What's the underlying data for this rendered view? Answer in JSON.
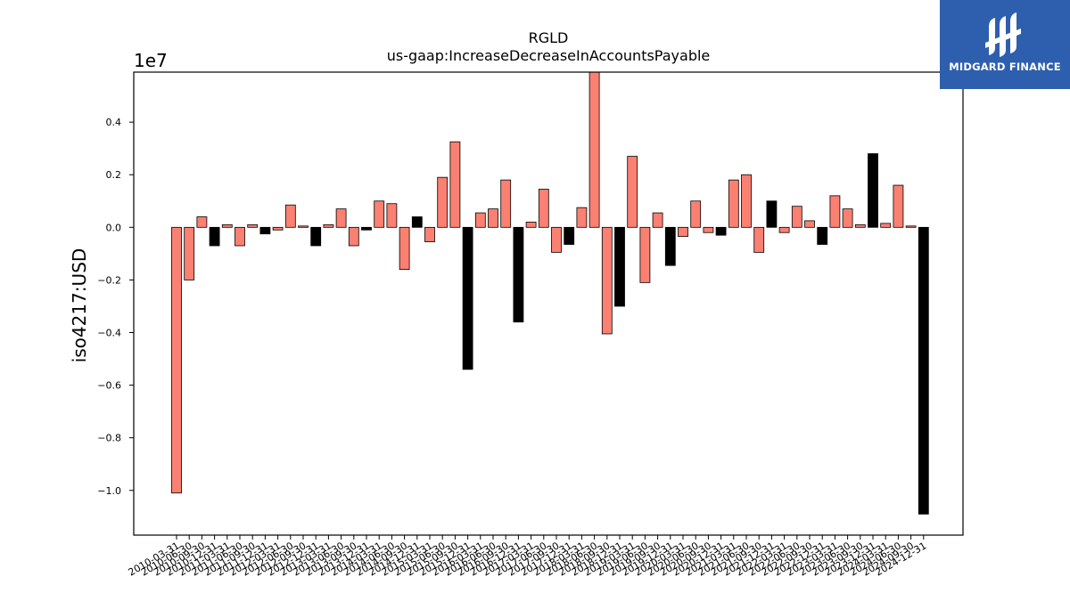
{
  "chart_data": {
    "type": "bar",
    "title": "RGLD",
    "subtitle": "us-gaap:IncreaseDecreaseInAccountsPayable",
    "ylabel": "iso4217:USD",
    "y_offset_label": "1e7",
    "y_scale": 10000000,
    "ylim": [
      -1.17,
      0.59
    ],
    "yticks": [
      0.4,
      0.2,
      0.0,
      -0.2,
      -0.4,
      -0.6,
      -0.8,
      -1.0
    ],
    "ytick_labels": [
      "0.4",
      "0.2",
      "0.0",
      "−0.2",
      "−0.4",
      "−0.6",
      "−0.8",
      "−1.0"
    ],
    "x_tick_labels_visible": [
      "2010-03-31",
      "2010-06-30",
      "2010-09-30",
      "2010-12-31",
      "2011-03-31",
      "2011-06-30",
      "2011-09-30",
      "2011-12-31",
      "2012-03-31",
      "2012-06-30",
      "2012-09-30",
      "2012-12-31",
      "2013-03-31",
      "2013-06-30",
      "2013-09-30",
      "2013-12-31",
      "2014-03-31",
      "2014-06-30",
      "2014-09-30",
      "2014-12-31",
      "2015-03-31",
      "2015-06-30",
      "2015-09-30",
      "2015-12-31",
      "2016-03-31",
      "2016-06-30",
      "2016-09-30",
      "2016-12-31",
      "2017-03-31",
      "2017-06-30",
      "2017-09-30",
      "2017-12-31",
      "2018-03-31",
      "2018-06-30",
      "2018-09-30",
      "2018-12-31",
      "2019-03-31",
      "2019-06-30",
      "2019-09-30",
      "2019-12-31",
      "2020-03-31",
      "2020-06-30",
      "2020-09-30",
      "2020-12-31",
      "2021-03-31",
      "2021-06-30",
      "2021-09-30",
      "2021-12-31",
      "2022-03-31",
      "2022-06-30",
      "2022-09-30",
      "2022-12-31",
      "2023-03-31",
      "2023-06-30",
      "2023-09-30",
      "2023-12-31",
      "2024-03-31",
      "2024-06-30",
      "2024-09-30",
      "2024-12-31"
    ],
    "values": [
      -1.01,
      -0.2,
      0.04,
      -0.07,
      0.01,
      -0.07,
      0.01,
      -0.025,
      -0.01,
      0.085,
      0.005,
      -0.07,
      0.01,
      0.07,
      -0.07,
      -0.01,
      0.1,
      0.09,
      -0.16,
      0.04,
      -0.055,
      0.19,
      0.325,
      -0.54,
      0.055,
      0.07,
      0.18,
      -0.36,
      0.02,
      0.145,
      -0.095,
      -0.065,
      0.075,
      0.6,
      -0.405,
      -0.3,
      0.27,
      -0.21,
      0.055,
      -0.145,
      -0.035,
      0.1,
      -0.02,
      -0.03,
      0.18,
      0.2,
      -0.095,
      0.1,
      -0.02,
      0.08,
      0.025,
      -0.065,
      0.12,
      0.07,
      0.01,
      0.28,
      0.015,
      0.16,
      0.005,
      -1.09
    ],
    "color_flags": [
      0,
      0,
      0,
      1,
      0,
      0,
      0,
      1,
      0,
      0,
      0,
      1,
      0,
      0,
      0,
      1,
      0,
      0,
      0,
      1,
      0,
      0,
      0,
      1,
      0,
      0,
      0,
      1,
      0,
      0,
      0,
      1,
      0,
      0,
      0,
      1,
      0,
      0,
      0,
      1,
      0,
      0,
      0,
      1,
      0,
      0,
      0,
      1,
      0,
      0,
      0,
      1,
      0,
      0,
      0,
      1,
      0,
      0,
      0,
      1
    ],
    "colors": {
      "positive_bar": "#fa8072",
      "annual_bar": "#000000",
      "edge": "#000000",
      "background": "#ffffff"
    }
  },
  "logo": {
    "text": "MIDGARD FINANCE",
    "color": "#2d5fae"
  }
}
